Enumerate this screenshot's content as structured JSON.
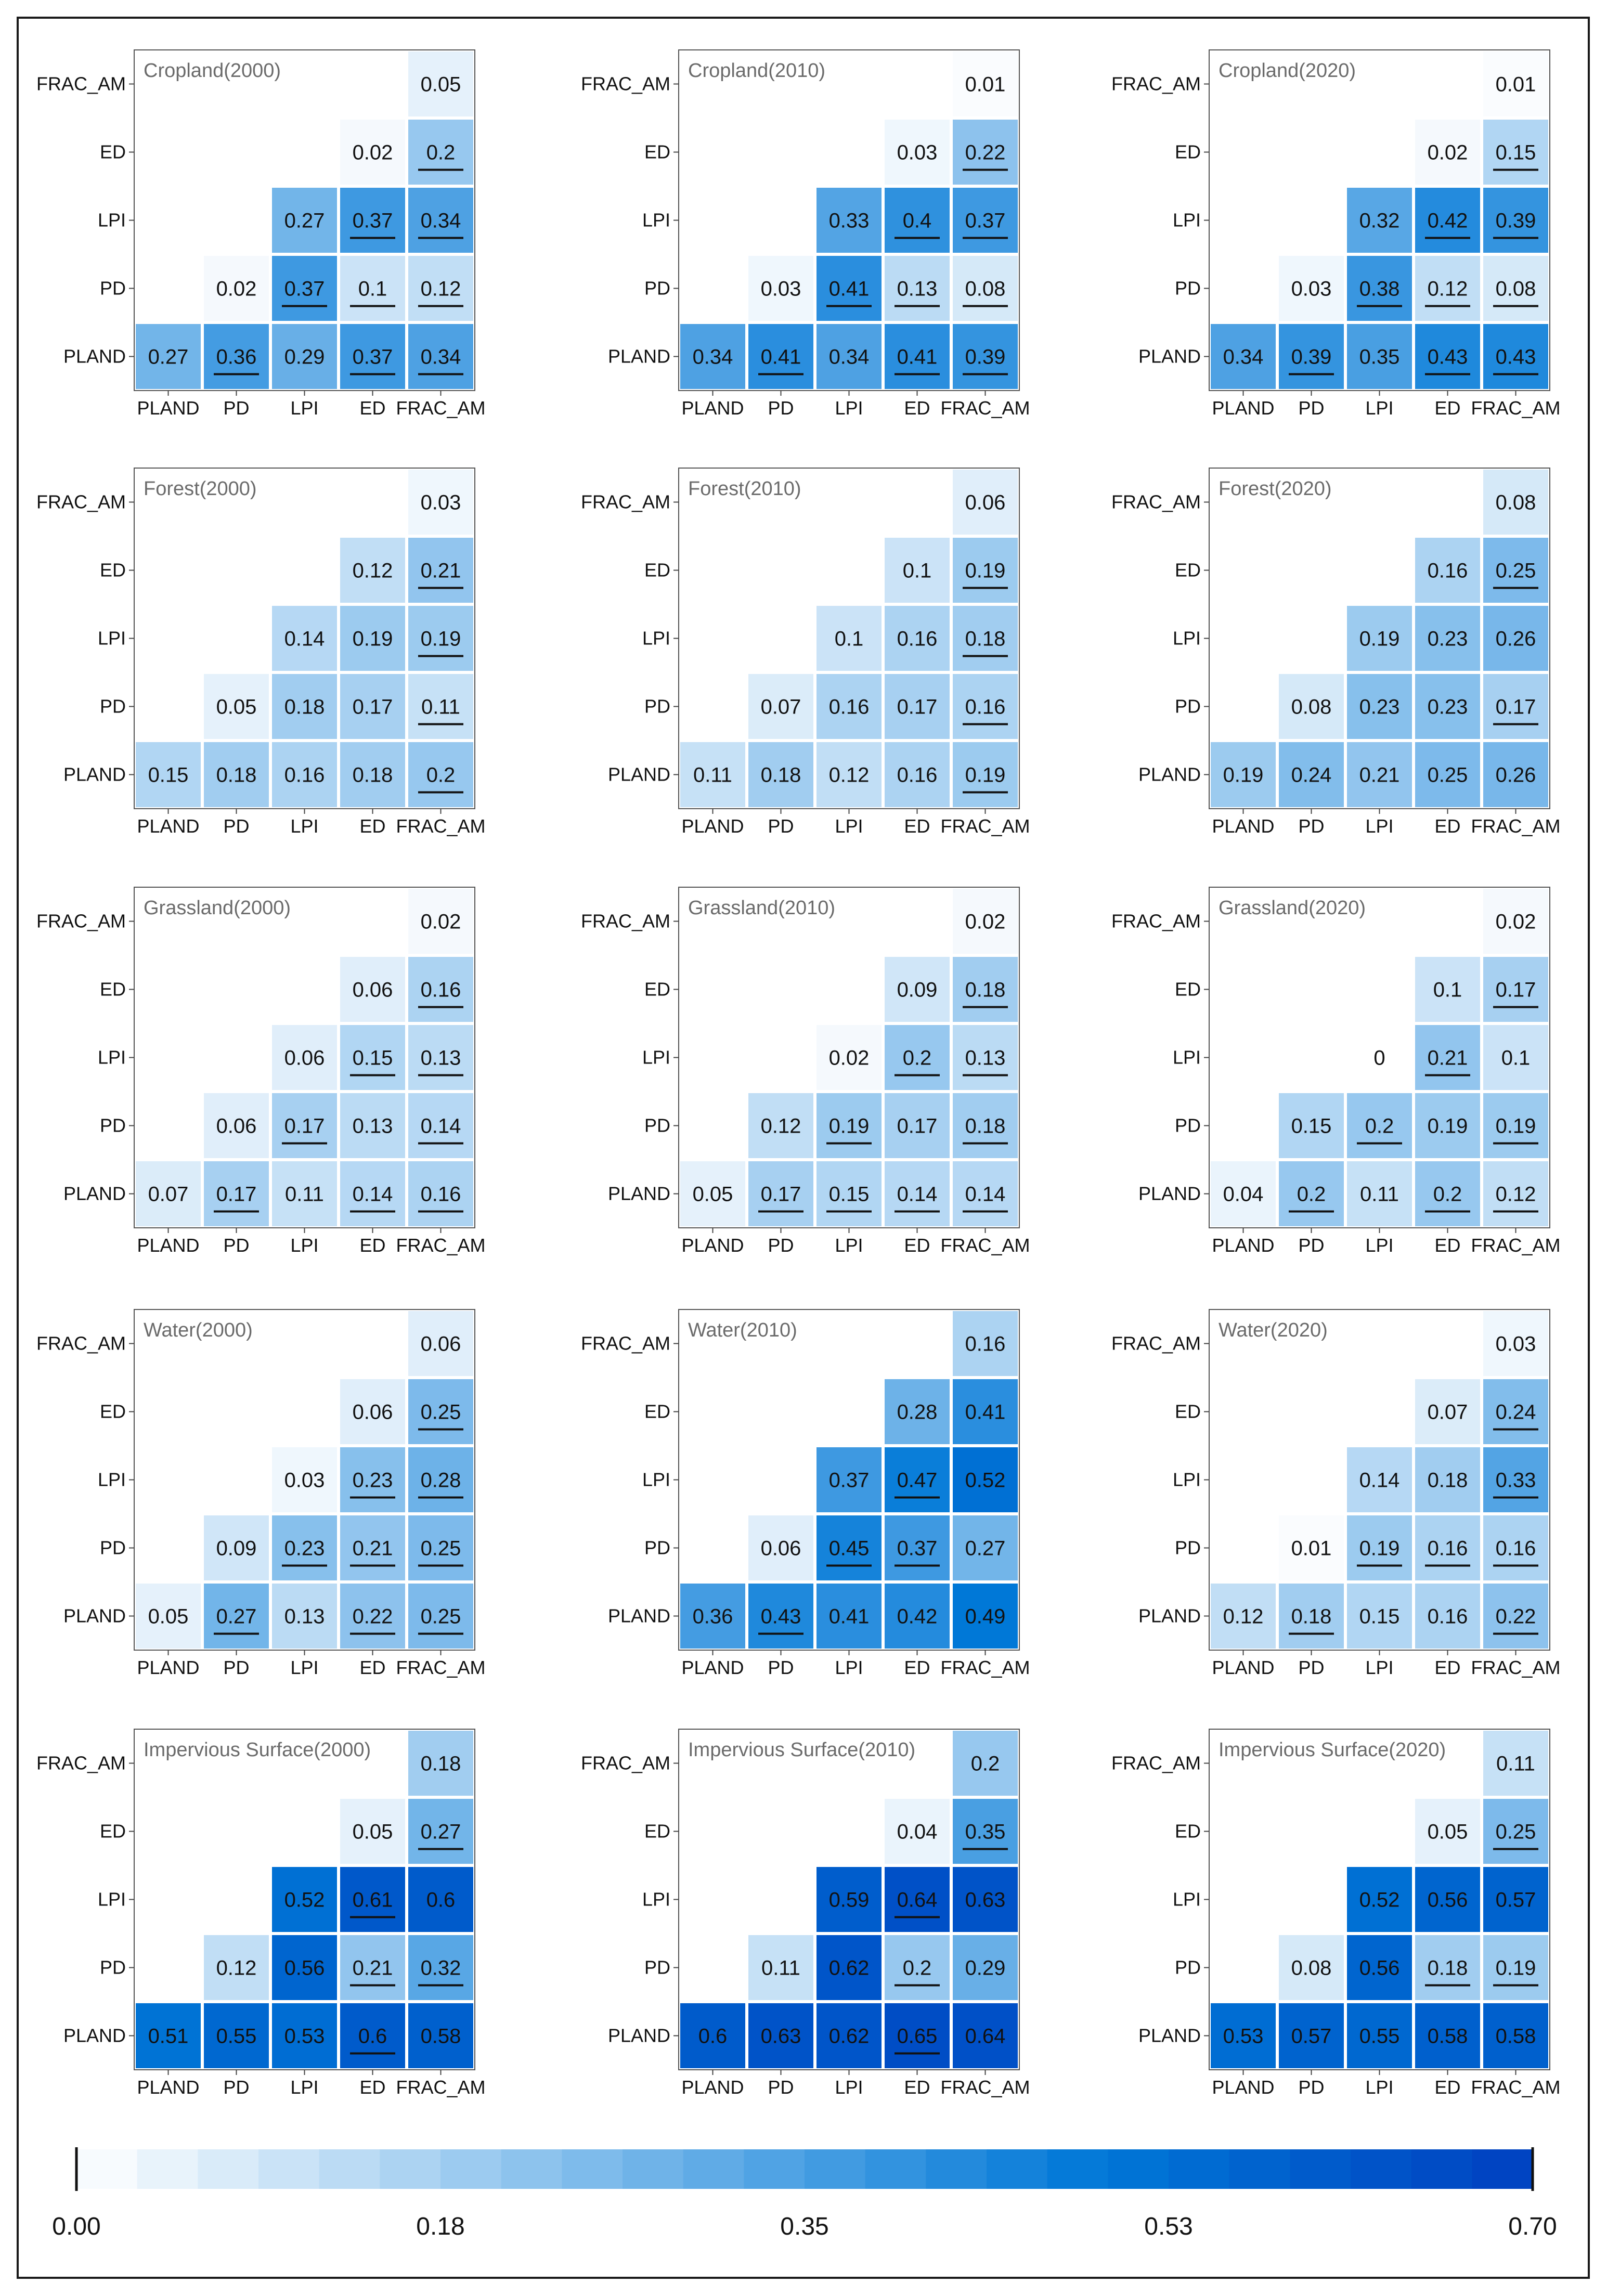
{
  "chart_data": {
    "type": "heatmap",
    "metrics": [
      "PLAND",
      "PD",
      "LPI",
      "ED",
      "FRAC_AM"
    ],
    "colorbar": {
      "ticks": [
        "0.00",
        "0.18",
        "0.35",
        "0.53",
        "0.70"
      ],
      "range": [
        0,
        0.7
      ],
      "low_color": "#ffffff",
      "mid_color": "#0078d7",
      "high_color": "#0040c0"
    },
    "panels": [
      {
        "title": "Cropland(2000)",
        "rows": [
          [
            0.27,
            0.36,
            0.29,
            0.37,
            0.34
          ],
          [
            0.02,
            0.37,
            0.1,
            0.12
          ],
          [
            0.27,
            0.37,
            0.34
          ],
          [
            0.02,
            0.2
          ],
          [
            0.05
          ]
        ],
        "underlined": [
          [
            false,
            true,
            false,
            true,
            true
          ],
          [
            false,
            true,
            true,
            true
          ],
          [
            false,
            true,
            true
          ],
          [
            false,
            true
          ],
          [
            false
          ]
        ]
      },
      {
        "title": "Cropland(2010)",
        "rows": [
          [
            0.34,
            0.41,
            0.34,
            0.41,
            0.39
          ],
          [
            0.03,
            0.41,
            0.13,
            0.08
          ],
          [
            0.33,
            0.4,
            0.37
          ],
          [
            0.03,
            0.22
          ],
          [
            0.01
          ]
        ],
        "underlined": [
          [
            false,
            true,
            false,
            true,
            true
          ],
          [
            false,
            true,
            true,
            true
          ],
          [
            false,
            true,
            true
          ],
          [
            false,
            true
          ],
          [
            false
          ]
        ]
      },
      {
        "title": "Cropland(2020)",
        "rows": [
          [
            0.34,
            0.39,
            0.35,
            0.43,
            0.43
          ],
          [
            0.03,
            0.38,
            0.12,
            0.08
          ],
          [
            0.32,
            0.42,
            0.39
          ],
          [
            0.02,
            0.15
          ],
          [
            0.01
          ]
        ],
        "underlined": [
          [
            false,
            true,
            false,
            true,
            true
          ],
          [
            false,
            true,
            true,
            true
          ],
          [
            false,
            true,
            true
          ],
          [
            false,
            true
          ],
          [
            false
          ]
        ]
      },
      {
        "title": "Forest(2000)",
        "rows": [
          [
            0.15,
            0.18,
            0.16,
            0.18,
            0.2
          ],
          [
            0.05,
            0.18,
            0.17,
            0.11
          ],
          [
            0.14,
            0.19,
            0.19
          ],
          [
            0.12,
            0.21
          ],
          [
            0.03
          ]
        ],
        "underlined": [
          [
            false,
            false,
            false,
            false,
            true
          ],
          [
            false,
            false,
            false,
            true
          ],
          [
            false,
            false,
            true
          ],
          [
            false,
            true
          ],
          [
            false
          ]
        ]
      },
      {
        "title": "Forest(2010)",
        "rows": [
          [
            0.11,
            0.18,
            0.12,
            0.16,
            0.19
          ],
          [
            0.07,
            0.16,
            0.17,
            0.16
          ],
          [
            0.1,
            0.16,
            0.18
          ],
          [
            0.1,
            0.19
          ],
          [
            0.06
          ]
        ],
        "underlined": [
          [
            false,
            false,
            false,
            false,
            true
          ],
          [
            false,
            false,
            false,
            true
          ],
          [
            false,
            false,
            true
          ],
          [
            false,
            true
          ],
          [
            false
          ]
        ]
      },
      {
        "title": "Forest(2020)",
        "rows": [
          [
            0.19,
            0.24,
            0.21,
            0.25,
            0.26
          ],
          [
            0.08,
            0.23,
            0.23,
            0.17
          ],
          [
            0.19,
            0.23,
            0.26
          ],
          [
            0.16,
            0.25
          ],
          [
            0.08
          ]
        ],
        "underlined": [
          [
            false,
            false,
            false,
            false,
            false
          ],
          [
            false,
            false,
            false,
            true
          ],
          [
            false,
            false,
            false
          ],
          [
            false,
            true
          ],
          [
            false
          ]
        ]
      },
      {
        "title": "Grassland(2000)",
        "rows": [
          [
            0.07,
            0.17,
            0.11,
            0.14,
            0.16
          ],
          [
            0.06,
            0.17,
            0.13,
            0.14
          ],
          [
            0.06,
            0.15,
            0.13
          ],
          [
            0.06,
            0.16
          ],
          [
            0.02
          ]
        ],
        "underlined": [
          [
            false,
            true,
            false,
            true,
            true
          ],
          [
            false,
            true,
            false,
            true
          ],
          [
            false,
            true,
            true
          ],
          [
            false,
            true
          ],
          [
            false
          ]
        ]
      },
      {
        "title": "Grassland(2010)",
        "rows": [
          [
            0.05,
            0.17,
            0.15,
            0.14,
            0.14
          ],
          [
            0.12,
            0.19,
            0.17,
            0.18
          ],
          [
            0.02,
            0.2,
            0.13
          ],
          [
            0.09,
            0.18
          ],
          [
            0.02
          ]
        ],
        "underlined": [
          [
            false,
            true,
            true,
            true,
            true
          ],
          [
            false,
            true,
            false,
            true
          ],
          [
            false,
            true,
            true
          ],
          [
            false,
            true
          ],
          [
            false
          ]
        ]
      },
      {
        "title": "Grassland(2020)",
        "rows": [
          [
            0.04,
            0.2,
            0.11,
            0.2,
            0.12
          ],
          [
            0.15,
            0.2,
            0.19,
            0.19
          ],
          [
            0,
            0.21,
            0.1
          ],
          [
            0.1,
            0.17
          ],
          [
            0.02
          ]
        ],
        "underlined": [
          [
            false,
            true,
            false,
            true,
            true
          ],
          [
            false,
            true,
            false,
            true
          ],
          [
            false,
            true,
            false
          ],
          [
            false,
            true
          ],
          [
            false
          ]
        ]
      },
      {
        "title": "Water(2000)",
        "rows": [
          [
            0.05,
            0.27,
            0.13,
            0.22,
            0.25
          ],
          [
            0.09,
            0.23,
            0.21,
            0.25
          ],
          [
            0.03,
            0.23,
            0.28
          ],
          [
            0.06,
            0.25
          ],
          [
            0.06
          ]
        ],
        "underlined": [
          [
            false,
            true,
            false,
            true,
            true
          ],
          [
            false,
            true,
            true,
            true
          ],
          [
            false,
            true,
            true
          ],
          [
            false,
            true
          ],
          [
            false
          ]
        ]
      },
      {
        "title": "Water(2010)",
        "rows": [
          [
            0.36,
            0.43,
            0.41,
            0.42,
            0.49
          ],
          [
            0.06,
            0.45,
            0.37,
            0.27
          ],
          [
            0.37,
            0.47,
            0.52
          ],
          [
            0.28,
            0.41
          ],
          [
            0.16
          ]
        ],
        "underlined": [
          [
            false,
            true,
            false,
            false,
            false
          ],
          [
            false,
            true,
            true,
            false
          ],
          [
            false,
            true,
            false
          ],
          [
            false,
            false
          ],
          [
            false
          ]
        ]
      },
      {
        "title": "Water(2020)",
        "rows": [
          [
            0.12,
            0.18,
            0.15,
            0.16,
            0.22
          ],
          [
            0.01,
            0.19,
            0.16,
            0.16
          ],
          [
            0.14,
            0.18,
            0.33
          ],
          [
            0.07,
            0.24
          ],
          [
            0.03
          ]
        ],
        "underlined": [
          [
            false,
            true,
            false,
            false,
            true
          ],
          [
            false,
            true,
            true,
            true
          ],
          [
            false,
            false,
            true
          ],
          [
            false,
            true
          ],
          [
            false
          ]
        ]
      },
      {
        "title": "Impervious Surface(2000)",
        "rows": [
          [
            0.51,
            0.55,
            0.53,
            0.6,
            0.58
          ],
          [
            0.12,
            0.56,
            0.21,
            0.32
          ],
          [
            0.52,
            0.61,
            0.6
          ],
          [
            0.05,
            0.27
          ],
          [
            0.18
          ]
        ],
        "underlined": [
          [
            false,
            false,
            false,
            true,
            false
          ],
          [
            false,
            false,
            true,
            true
          ],
          [
            false,
            true,
            false
          ],
          [
            false,
            true
          ],
          [
            false
          ]
        ]
      },
      {
        "title": "Impervious Surface(2010)",
        "rows": [
          [
            0.6,
            0.63,
            0.62,
            0.65,
            0.64
          ],
          [
            0.11,
            0.62,
            0.2,
            0.29
          ],
          [
            0.59,
            0.64,
            0.63
          ],
          [
            0.04,
            0.35
          ],
          [
            0.2
          ]
        ],
        "underlined": [
          [
            false,
            false,
            false,
            true,
            false
          ],
          [
            false,
            false,
            true,
            false
          ],
          [
            false,
            true,
            false
          ],
          [
            false,
            true
          ],
          [
            false
          ]
        ]
      },
      {
        "title": "Impervious Surface(2020)",
        "rows": [
          [
            0.53,
            0.57,
            0.55,
            0.58,
            0.58
          ],
          [
            0.08,
            0.56,
            0.18,
            0.19
          ],
          [
            0.52,
            0.56,
            0.57
          ],
          [
            0.05,
            0.25
          ],
          [
            0.11
          ]
        ],
        "underlined": [
          [
            false,
            false,
            false,
            false,
            false
          ],
          [
            false,
            false,
            true,
            true
          ],
          [
            false,
            false,
            false
          ],
          [
            false,
            true
          ],
          [
            false
          ]
        ]
      }
    ]
  }
}
